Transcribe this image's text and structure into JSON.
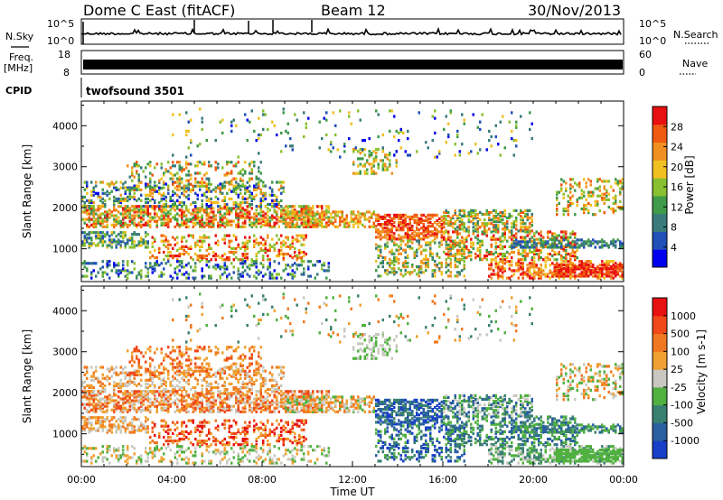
{
  "header": {
    "station": "Dome C East (fitACF)",
    "beam": "Beam 12",
    "date": "30/Nov/2013"
  },
  "noise_panel": {
    "left_label": "N.Sky",
    "right_label": "N.Search",
    "left_ticks": [
      "10^5",
      "10^0"
    ],
    "right_ticks": [
      "10^5",
      "10^0"
    ],
    "right_label_style": "dotted",
    "left_label_style": "solid"
  },
  "freq_panel": {
    "left_label_line1": "Freq.",
    "left_label_line2": "[MHz]",
    "right_label": "Nave",
    "left_ticks": [
      "18",
      "8"
    ],
    "right_ticks": [
      "60",
      "0"
    ],
    "right_label_style": "dotted"
  },
  "cpid": {
    "label": "CPID",
    "program": "twofsound 3501"
  },
  "chart_data": [
    {
      "type": "heatmap",
      "title": "",
      "ylabel": "Slant Range [km]",
      "xlabel": "",
      "ylim": [
        200,
        4600
      ],
      "yticks": [
        "1000",
        "2000",
        "3000",
        "4000"
      ],
      "xlim": [
        "00:00",
        "24:00"
      ],
      "colorbar": {
        "label": "Power [dB]",
        "ticks": [
          "28",
          "24",
          "20",
          "16",
          "12",
          "8",
          "4"
        ],
        "colors": [
          "#0000ee",
          "#2050b8",
          "#3a7a7a",
          "#3f9a4a",
          "#88c030",
          "#f0c020",
          "#f09020",
          "#f05a10",
          "#e81010"
        ],
        "range": [
          0,
          30
        ]
      }
    },
    {
      "type": "heatmap",
      "title": "",
      "ylabel": "Slant Range [km]",
      "xlabel": "Time UT",
      "ylim": [
        200,
        4600
      ],
      "yticks": [
        "1000",
        "2000",
        "3000",
        "4000"
      ],
      "xticks": [
        "00:00",
        "04:00",
        "08:00",
        "12:00",
        "16:00",
        "20:00",
        "00:00"
      ],
      "colorbar": {
        "label": "Velocity [m s-1]",
        "ticks": [
          "1000",
          "500",
          "100",
          "25",
          "-25",
          "-100",
          "-500",
          "-1000"
        ],
        "colors": [
          "#1840c8",
          "#2a60a0",
          "#3a8070",
          "#50b040",
          "#c8c8c0",
          "#f0a030",
          "#f07820",
          "#f04818",
          "#e81010"
        ],
        "range": [
          -1000,
          1000
        ]
      }
    }
  ]
}
